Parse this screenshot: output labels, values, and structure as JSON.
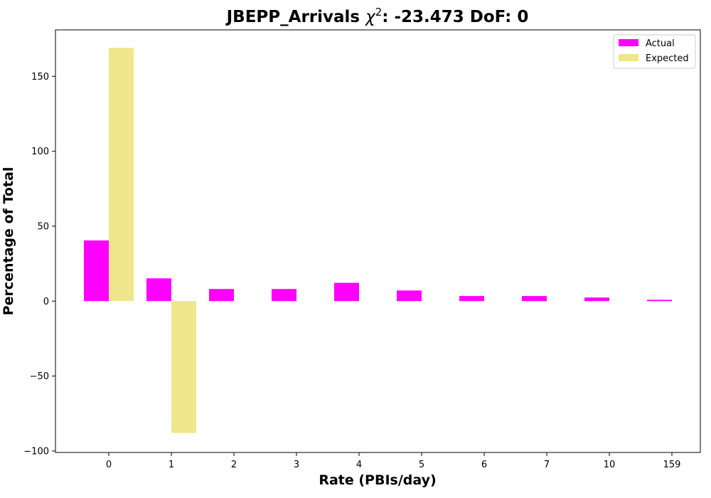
{
  "chart_data": {
    "type": "bar",
    "title_prefix": "JBEPP_Arrivals ",
    "title_chi": "χ",
    "title_sup": "2",
    "title_suffix": ": -23.473 DoF: 0",
    "xlabel": "Rate (PBIs/day)",
    "ylabel": "Percentage of Total",
    "categories": [
      "0",
      "1",
      "2",
      "3",
      "4",
      "5",
      "6",
      "7",
      "10",
      "159"
    ],
    "series": [
      {
        "name": "Actual",
        "color": "#ff00ff",
        "values": [
          40.5,
          15.2,
          8.1,
          8.1,
          12.2,
          7.1,
          3.4,
          3.4,
          2.4,
          0.9
        ]
      },
      {
        "name": "Expected",
        "color": "#f0e68c",
        "values": [
          169.0,
          -88.0,
          null,
          null,
          null,
          null,
          null,
          null,
          null,
          null
        ]
      }
    ],
    "ylim": [
      -101,
      181
    ],
    "yticks": [
      -100,
      -50,
      0,
      50,
      100,
      150
    ],
    "ytick_labels": [
      "−100",
      "−50",
      "0",
      "50",
      "100",
      "150"
    ],
    "grid": false,
    "legend_position": "top-right"
  }
}
